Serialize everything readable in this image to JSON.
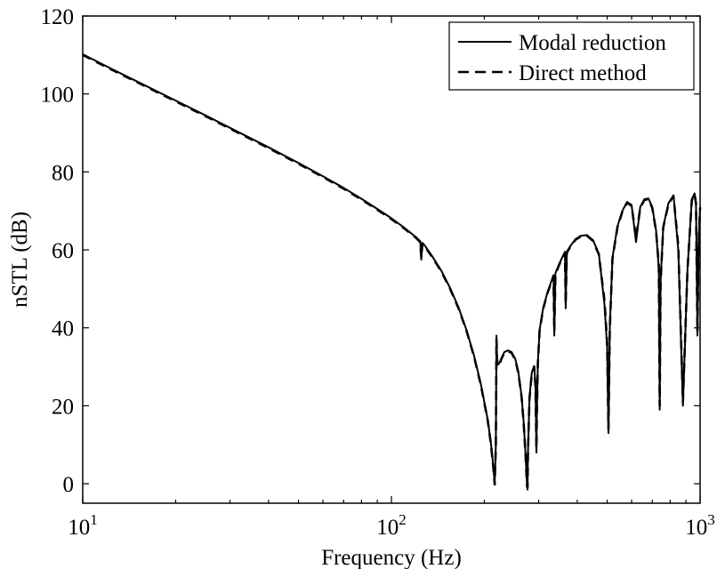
{
  "chart_data": {
    "type": "line",
    "xlabel": "Frequency (Hz)",
    "ylabel": "nSTL (dB)",
    "xscale": "log",
    "xlim": [
      10,
      1000
    ],
    "ylim": [
      -5,
      120
    ],
    "x_tick_labels": [
      {
        "base": "10",
        "exp": "1"
      },
      {
        "base": "10",
        "exp": "2"
      },
      {
        "base": "10",
        "exp": "3"
      }
    ],
    "y_ticks": [
      0,
      20,
      40,
      60,
      80,
      100,
      120
    ],
    "y_tick_labels": [
      "0",
      "20",
      "40",
      "60",
      "80",
      "100",
      "120"
    ],
    "legend": {
      "position": "top-right",
      "entries": [
        "Modal reduction",
        "Direct method"
      ]
    },
    "grid": false,
    "series": [
      {
        "name": "Modal reduction",
        "style": "solid",
        "color": "#000000",
        "x": [
          10,
          12,
          15,
          20,
          25,
          30,
          40,
          50,
          60,
          70,
          80,
          90,
          100,
          110,
          120,
          124,
          125,
          126,
          128,
          135,
          145,
          155,
          165,
          175,
          185,
          195,
          205,
          210,
          214,
          216,
          218,
          219,
          220,
          221,
          224,
          228,
          232,
          238,
          245,
          252,
          258,
          264,
          268,
          272,
          275,
          276,
          277,
          280,
          285,
          290,
          293,
          295,
          296,
          298,
          302,
          310,
          320,
          330,
          335,
          337,
          340,
          350,
          360,
          365,
          367,
          370,
          380,
          395,
          410,
          430,
          450,
          470,
          490,
          500,
          505,
          510,
          520,
          540,
          560,
          580,
          600,
          620,
          640,
          660,
          680,
          700,
          720,
          735,
          740,
          745,
          760,
          790,
          820,
          850,
          880,
          910,
          940,
          960,
          970,
          980,
          990,
          1000
        ],
        "y": [
          110.2,
          107.0,
          103.2,
          98.3,
          94.5,
          91.3,
          86.3,
          82.3,
          78.9,
          75.9,
          73.1,
          70.5,
          68.1,
          65.7,
          63.3,
          62.2,
          57.5,
          61.8,
          61.2,
          58.6,
          54.7,
          50.2,
          45.2,
          39.5,
          33.0,
          25.5,
          16.5,
          10.5,
          4.0,
          0.0,
          10.0,
          38.0,
          32.0,
          30.5,
          31.0,
          32.5,
          33.7,
          34.2,
          33.8,
          32.0,
          28.5,
          22.5,
          16.0,
          7.5,
          0.0,
          -1.5,
          8.0,
          22.0,
          28.5,
          30.2,
          25.0,
          8.0,
          18.0,
          31.0,
          39.5,
          45.0,
          49.0,
          52.0,
          53.5,
          38.0,
          54.0,
          56.5,
          58.5,
          59.5,
          45.0,
          59.5,
          61.0,
          62.8,
          63.6,
          63.8,
          62.5,
          59.0,
          46.0,
          35.0,
          13.0,
          40.0,
          58.0,
          66.0,
          70.0,
          72.3,
          71.5,
          62.0,
          71.0,
          73.0,
          73.2,
          71.0,
          65.0,
          55.0,
          19.0,
          52.0,
          66.0,
          72.0,
          74.0,
          60.0,
          20.0,
          55.0,
          73.0,
          74.5,
          72.0,
          38.0,
          63.0,
          71.0
        ]
      },
      {
        "name": "Direct method",
        "style": "dashed",
        "color": "#000000",
        "x": [
          10,
          12,
          15,
          20,
          25,
          30,
          40,
          50,
          60,
          70,
          80,
          90,
          100,
          110,
          120,
          124,
          125,
          126,
          128,
          135,
          145,
          155,
          165,
          175,
          185,
          195,
          205,
          210,
          214,
          216,
          218,
          219,
          220,
          221,
          224,
          228,
          232,
          238,
          245,
          252,
          258,
          264,
          268,
          272,
          275,
          276,
          277,
          280,
          285,
          290,
          293,
          295,
          296,
          298,
          302,
          310,
          320,
          330,
          335,
          337,
          340,
          350,
          360,
          365,
          367,
          370,
          380,
          395,
          410,
          430,
          450,
          470,
          490,
          500,
          505,
          510,
          520,
          540,
          560,
          580,
          600,
          620,
          640,
          660,
          680,
          700,
          720,
          735,
          740,
          745,
          760,
          790,
          820,
          850,
          880,
          910,
          940,
          960,
          970,
          980,
          990,
          1000
        ],
        "y": [
          110.0,
          106.8,
          103.0,
          98.1,
          94.3,
          91.1,
          86.1,
          82.1,
          78.7,
          75.7,
          72.9,
          70.3,
          67.9,
          65.5,
          63.1,
          62.0,
          58.0,
          61.6,
          61.0,
          58.4,
          54.5,
          50.0,
          45.0,
          39.3,
          32.8,
          25.3,
          16.3,
          10.3,
          3.8,
          -0.2,
          9.8,
          37.0,
          31.8,
          30.3,
          30.8,
          32.3,
          33.5,
          34.0,
          33.6,
          31.8,
          28.3,
          22.3,
          15.8,
          7.3,
          -0.5,
          -1.0,
          7.8,
          21.8,
          28.3,
          30.0,
          24.8,
          9.0,
          17.8,
          30.8,
          39.3,
          44.8,
          48.8,
          51.8,
          53.3,
          39.0,
          53.8,
          56.3,
          58.3,
          59.3,
          46.0,
          59.3,
          60.8,
          62.6,
          63.4,
          63.6,
          62.3,
          58.8,
          47.0,
          36.0,
          14.0,
          39.8,
          57.8,
          65.8,
          69.8,
          72.1,
          71.3,
          63.0,
          70.8,
          72.8,
          73.0,
          70.8,
          64.8,
          56.0,
          20.0,
          51.8,
          65.8,
          71.8,
          73.8,
          61.0,
          21.0,
          54.8,
          72.8,
          74.3,
          71.8,
          39.0,
          62.8,
          70.8
        ]
      }
    ]
  }
}
